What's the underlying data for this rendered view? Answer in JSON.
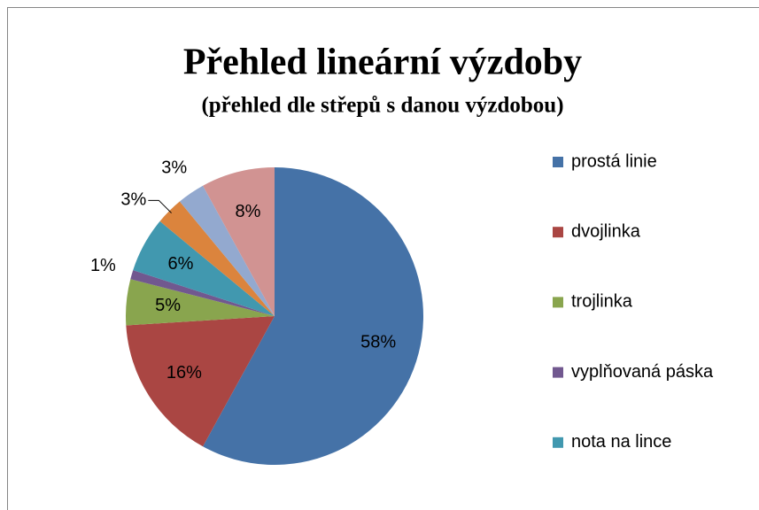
{
  "chart_data": {
    "type": "pie",
    "title": "Přehled lineární výzdoby",
    "subtitle": "(přehled dle střepů s danou výzdobou)",
    "categories": [
      "prostá linie",
      "dvojlinka",
      "trojlinka",
      "vyplňovaná páska",
      "nota na lince",
      null,
      null,
      null
    ],
    "values": [
      58,
      16,
      5,
      1,
      6,
      3,
      3,
      8
    ],
    "value_labels": [
      "58%",
      "16%",
      "5%",
      "1%",
      "6%",
      "3%",
      "3%",
      "8%"
    ],
    "colors": [
      "#4572a7",
      "#aa4643",
      "#89a54e",
      "#71588f",
      "#4198af",
      "#db843d",
      "#93a9cf",
      "#d19392"
    ],
    "legend": "right"
  }
}
